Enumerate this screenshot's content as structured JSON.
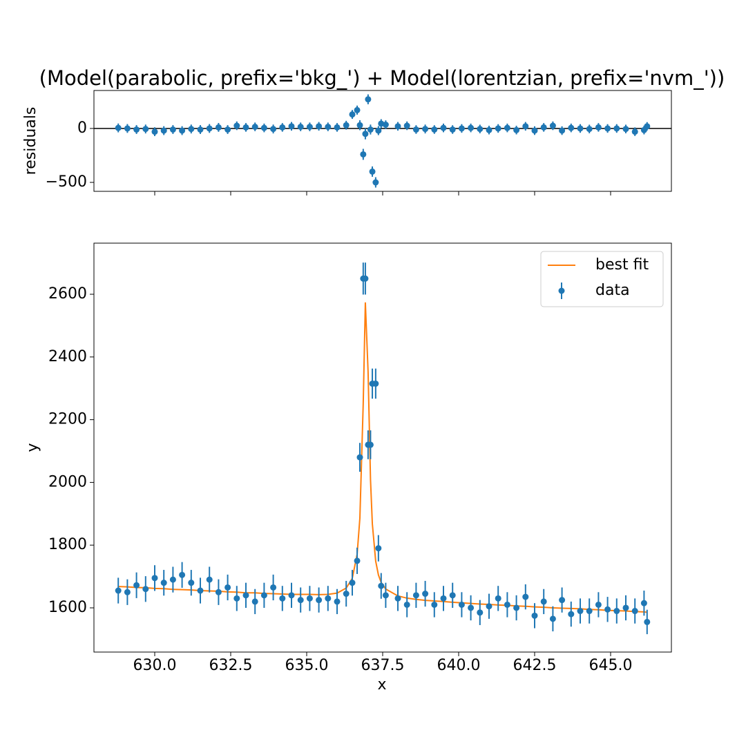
{
  "chart_data": [
    {
      "type": "errorbar",
      "title": "(Model(parabolic, prefix='bkg_') + Model(lorentzian, prefix='nvm_'))",
      "ylabel": "residuals",
      "values": [
        5,
        0,
        -10,
        -5,
        -30,
        -20,
        -10,
        -20,
        -5,
        -10,
        0,
        10,
        -10,
        25,
        10,
        15,
        5,
        -5,
        10,
        20,
        15,
        15,
        20,
        15,
        10,
        30,
        130,
        170,
        30,
        -240,
        -50,
        270,
        -10,
        -400,
        -500,
        -20,
        45,
        35,
        20,
        25,
        -10,
        -5,
        -10,
        5,
        -10,
        0,
        5,
        -5,
        -15,
        0,
        5,
        -15,
        20,
        -20,
        10,
        25,
        -20,
        5,
        0,
        -5,
        10,
        0,
        0,
        -5,
        -30,
        -15,
        20
      ],
      "color": "#1f77b4",
      "hline": 0,
      "ylim": [
        -583,
        352
      ],
      "yticks": [
        {
          "value": -500,
          "label": "−500"
        },
        0
      ]
    },
    {
      "type": "line",
      "xlabel": "x",
      "ylabel": "y",
      "x": [
        628.8,
        629.1,
        629.4,
        629.7,
        630.0,
        630.3,
        630.6,
        630.9,
        631.2,
        631.5,
        631.8,
        632.1,
        632.4,
        632.7,
        633.0,
        633.3,
        633.6,
        633.9,
        634.2,
        634.5,
        634.8,
        635.1,
        635.4,
        635.7,
        636.0,
        636.3,
        636.5,
        636.66,
        636.75,
        636.86,
        636.93,
        637.02,
        637.1,
        637.16,
        637.27,
        637.36,
        637.45,
        637.6,
        638.0,
        638.3,
        638.6,
        638.9,
        639.2,
        639.5,
        639.8,
        640.1,
        640.4,
        640.7,
        641.0,
        641.3,
        641.6,
        641.9,
        642.2,
        642.5,
        642.8,
        643.1,
        643.4,
        643.7,
        644.0,
        644.3,
        644.6,
        644.9,
        645.2,
        645.5,
        645.8,
        646.1,
        646.2
      ],
      "xlim": [
        628,
        647
      ],
      "xticks": [
        {
          "value": 630,
          "label": "630.0"
        },
        632.5,
        {
          "value": 635,
          "label": "635.0"
        },
        637.5,
        {
          "value": 640,
          "label": "640.0"
        },
        642.5,
        {
          "value": 645,
          "label": "645.0"
        }
      ],
      "ylim": [
        1459,
        2763
      ],
      "yticks": [
        1600,
        1800,
        2000,
        2200,
        2400,
        2600
      ],
      "legend": "upper right",
      "series": [
        {
          "name": "best fit",
          "color": "#ff7f0e",
          "style": "line",
          "values": [
            1668,
            1667,
            1665,
            1664,
            1662,
            1661,
            1659,
            1658,
            1657,
            1655,
            1654,
            1653,
            1651,
            1650,
            1648,
            1648,
            1646,
            1645,
            1644,
            1643,
            1643,
            1643,
            1642,
            1643,
            1647,
            1663,
            1694,
            1771,
            1886,
            2251,
            2574,
            2353,
            2008,
            1868,
            1749,
            1705,
            1681,
            1660,
            1638,
            1631,
            1627,
            1624,
            1622,
            1620,
            1618,
            1616,
            1614,
            1612,
            1611,
            1609,
            1608,
            1606,
            1605,
            1603,
            1602,
            1600,
            1599,
            1598,
            1597,
            1595,
            1594,
            1592,
            1591,
            1590,
            1588,
            1587,
            1586
          ]
        },
        {
          "name": "data",
          "color": "#1f77b4",
          "style": "errorbar",
          "values": [
            1655,
            1650,
            1672,
            1660,
            1695,
            1680,
            1690,
            1705,
            1680,
            1655,
            1690,
            1650,
            1665,
            1630,
            1640,
            1620,
            1640,
            1665,
            1630,
            1640,
            1625,
            1630,
            1625,
            1630,
            1620,
            1645,
            1680,
            1750,
            2080,
            2650,
            2650,
            2120,
            2120,
            2315,
            2315,
            1790,
            1670,
            1640,
            1630,
            1610,
            1640,
            1645,
            1610,
            1630,
            1640,
            1610,
            1600,
            1585,
            1605,
            1630,
            1610,
            1600,
            1635,
            1575,
            1620,
            1565,
            1625,
            1580,
            1590,
            1590,
            1610,
            1595,
            1590,
            1600,
            1590,
            1615,
            1555
          ],
          "yerr": [
            41,
            41,
            41,
            41,
            41,
            41,
            41,
            41,
            41,
            41,
            41,
            41,
            41,
            40,
            40,
            40,
            40,
            41,
            40,
            40,
            40,
            40,
            40,
            40,
            40,
            41,
            41,
            42,
            46,
            51,
            51,
            46,
            46,
            48,
            48,
            42,
            41,
            40,
            40,
            40,
            40,
            41,
            40,
            40,
            40,
            40,
            40,
            40,
            40,
            40,
            40,
            40,
            40,
            40,
            40,
            40,
            40,
            40,
            40,
            40,
            40,
            40,
            40,
            40,
            40,
            40,
            39
          ]
        }
      ]
    }
  ]
}
